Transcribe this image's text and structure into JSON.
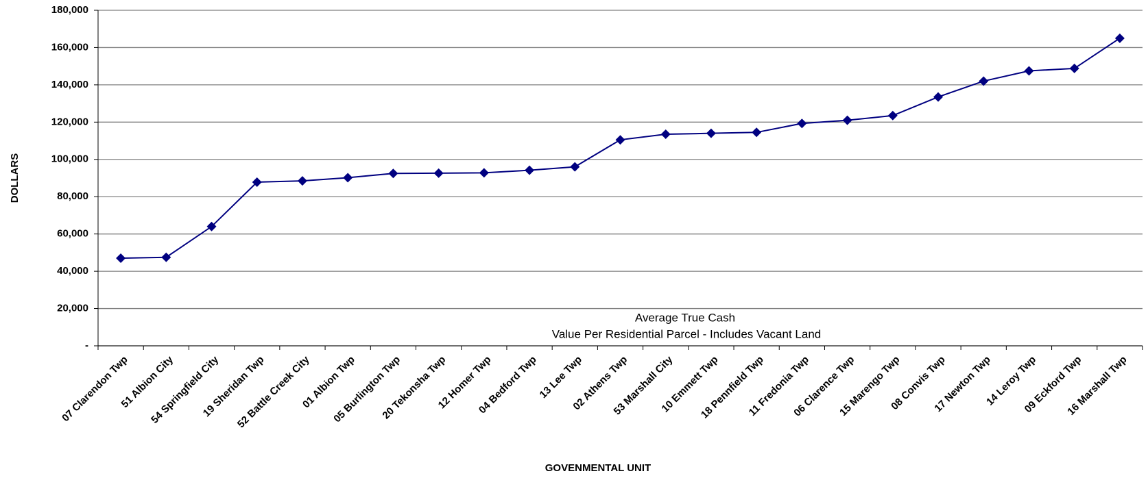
{
  "chart_data": {
    "type": "line",
    "y_label": "DOLLARS",
    "x_label": "GOVENMENTAL UNIT",
    "annotation": [
      "Average True Cash",
      "Value Per Residential Parcel - Includes Vacant Land"
    ],
    "categories": [
      "07 Clarendon Twp",
      "51 Albion City",
      "54 Springfield City",
      "19 Sheridan Twp",
      "52 Battle Creek City",
      "01 Albion Twp",
      "05 Burlington Twp",
      "20 Tekonsha Twp",
      "12 Homer Twp",
      "04 Bedford Twp",
      "13 Lee Twp",
      "02 Athens Twp",
      "53 Marshall City",
      "10 Emmett Twp",
      "18 Pennfield Twp",
      "11 Fredonia Twp",
      "06 Clarence Twp",
      "15 Marengo Twp",
      "08 Convis Twp",
      "17 Newton Twp",
      "14 Leroy Twp",
      "09 Eckford Twp",
      "16 Marshall Twp"
    ],
    "values": [
      47000,
      47500,
      64000,
      87800,
      88500,
      90200,
      92500,
      92600,
      92800,
      94200,
      96000,
      110500,
      113500,
      114000,
      114500,
      119300,
      121000,
      123500,
      133500,
      142000,
      147500,
      148800,
      165000
    ],
    "color": "#000080",
    "ylim": [
      0,
      180000
    ],
    "yticks": [
      {
        "value": 0,
        "label": "-"
      },
      {
        "value": 20000,
        "label": "20,000"
      },
      {
        "value": 40000,
        "label": "40,000"
      },
      {
        "value": 60000,
        "label": "60,000"
      },
      {
        "value": 80000,
        "label": "80,000"
      },
      {
        "value": 100000,
        "label": "100,000"
      },
      {
        "value": 120000,
        "label": "120,000"
      },
      {
        "value": 140000,
        "label": "140,000"
      },
      {
        "value": 160000,
        "label": "160,000"
      },
      {
        "value": 180000,
        "label": "180,000"
      }
    ],
    "grid": true
  }
}
